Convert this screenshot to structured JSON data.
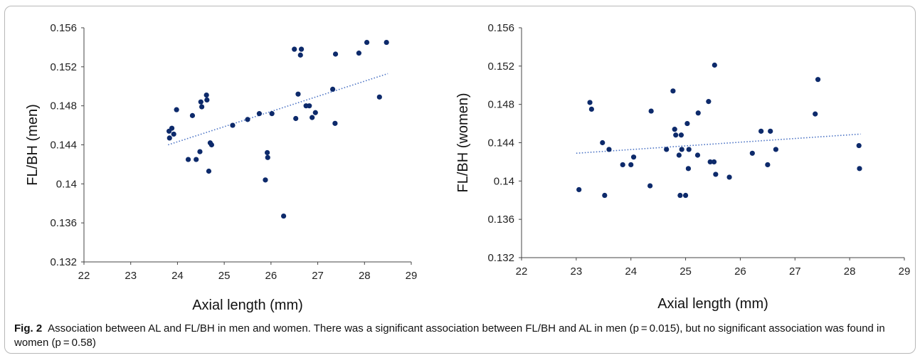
{
  "caption": {
    "label": "Fig. 2",
    "text": "Association between AL and FL/BH in men and women. There was a significant association between FL/BH and AL in men (p = 0.015), but no significant association was found in women (p = 0.58)"
  },
  "colors": {
    "marker": "#0d2a6b",
    "trend": "#4a72c4",
    "axis": "#444444"
  },
  "chart_data": [
    {
      "type": "scatter",
      "xlabel": "Axial length (mm)",
      "ylabel": "FL/BH (men)",
      "xlim": [
        22,
        29
      ],
      "ylim": [
        0.132,
        0.156
      ],
      "xticks": [
        "22",
        "23",
        "24",
        "25",
        "26",
        "27",
        "28",
        "29"
      ],
      "yticks": [
        "0.132",
        "0.136",
        "0.14",
        "0.144",
        "0.148",
        "0.152",
        "0.156"
      ],
      "trendline": {
        "style": "dotted",
        "x": [
          23.8,
          28.5
        ],
        "y": [
          0.144,
          0.1513
        ]
      },
      "points": [
        [
          23.82,
          0.1454
        ],
        [
          23.83,
          0.1447
        ],
        [
          23.88,
          0.1457
        ],
        [
          23.92,
          0.1451
        ],
        [
          23.98,
          0.1476
        ],
        [
          24.23,
          0.1425
        ],
        [
          24.32,
          0.147
        ],
        [
          24.4,
          0.1425
        ],
        [
          24.48,
          0.1433
        ],
        [
          24.5,
          0.1484
        ],
        [
          24.52,
          0.1479
        ],
        [
          24.62,
          0.1491
        ],
        [
          24.63,
          0.1486
        ],
        [
          24.67,
          0.1413
        ],
        [
          24.7,
          0.1442
        ],
        [
          24.73,
          0.144
        ],
        [
          25.18,
          0.146
        ],
        [
          25.5,
          0.1466
        ],
        [
          25.75,
          0.1472
        ],
        [
          25.88,
          0.1404
        ],
        [
          25.92,
          0.1432
        ],
        [
          25.93,
          0.1427
        ],
        [
          26.02,
          0.1472
        ],
        [
          26.27,
          0.1367
        ],
        [
          26.5,
          0.1538
        ],
        [
          26.53,
          0.1467
        ],
        [
          26.58,
          0.1492
        ],
        [
          26.63,
          0.1532
        ],
        [
          26.65,
          0.1538
        ],
        [
          26.75,
          0.148
        ],
        [
          26.82,
          0.148
        ],
        [
          26.88,
          0.1468
        ],
        [
          26.95,
          0.1473
        ],
        [
          27.32,
          0.1497
        ],
        [
          27.37,
          0.1462
        ],
        [
          27.38,
          0.1533
        ],
        [
          27.88,
          0.1534
        ],
        [
          28.05,
          0.1545
        ],
        [
          28.32,
          0.1489
        ],
        [
          28.47,
          0.1545
        ]
      ]
    },
    {
      "type": "scatter",
      "xlabel": "Axial length (mm)",
      "ylabel": "FL/BH (women)",
      "xlim": [
        22,
        29
      ],
      "ylim": [
        0.132,
        0.156
      ],
      "xticks": [
        "22",
        "23",
        "24",
        "25",
        "26",
        "27",
        "28",
        "29"
      ],
      "yticks": [
        "0.132",
        "0.136",
        "0.14",
        "0.144",
        "0.148",
        "0.152",
        "0.156"
      ],
      "trendline": {
        "style": "dotted",
        "x": [
          23.0,
          28.2
        ],
        "y": [
          0.1429,
          0.1449
        ]
      },
      "points": [
        [
          23.05,
          0.1391
        ],
        [
          23.25,
          0.1482
        ],
        [
          23.28,
          0.1475
        ],
        [
          23.48,
          0.144
        ],
        [
          23.52,
          0.1385
        ],
        [
          23.6,
          0.1433
        ],
        [
          23.85,
          0.1417
        ],
        [
          24.0,
          0.1417
        ],
        [
          24.05,
          0.1425
        ],
        [
          24.35,
          0.1395
        ],
        [
          24.37,
          0.1473
        ],
        [
          24.65,
          0.1433
        ],
        [
          24.77,
          0.1494
        ],
        [
          24.8,
          0.1454
        ],
        [
          24.82,
          0.1448
        ],
        [
          24.88,
          0.1427
        ],
        [
          24.9,
          0.1385
        ],
        [
          24.92,
          0.1448
        ],
        [
          24.93,
          0.1433
        ],
        [
          25.0,
          0.1385
        ],
        [
          25.03,
          0.146
        ],
        [
          25.05,
          0.1413
        ],
        [
          25.06,
          0.1433
        ],
        [
          25.22,
          0.1427
        ],
        [
          25.23,
          0.1471
        ],
        [
          25.42,
          0.1483
        ],
        [
          25.45,
          0.142
        ],
        [
          25.52,
          0.142
        ],
        [
          25.53,
          0.1521
        ],
        [
          25.55,
          0.1407
        ],
        [
          25.8,
          0.1404
        ],
        [
          26.22,
          0.1429
        ],
        [
          26.38,
          0.1452
        ],
        [
          26.5,
          0.1417
        ],
        [
          26.55,
          0.1452
        ],
        [
          26.65,
          0.1433
        ],
        [
          27.37,
          0.147
        ],
        [
          27.42,
          0.1506
        ],
        [
          28.17,
          0.1437
        ],
        [
          28.18,
          0.1413
        ]
      ]
    }
  ]
}
